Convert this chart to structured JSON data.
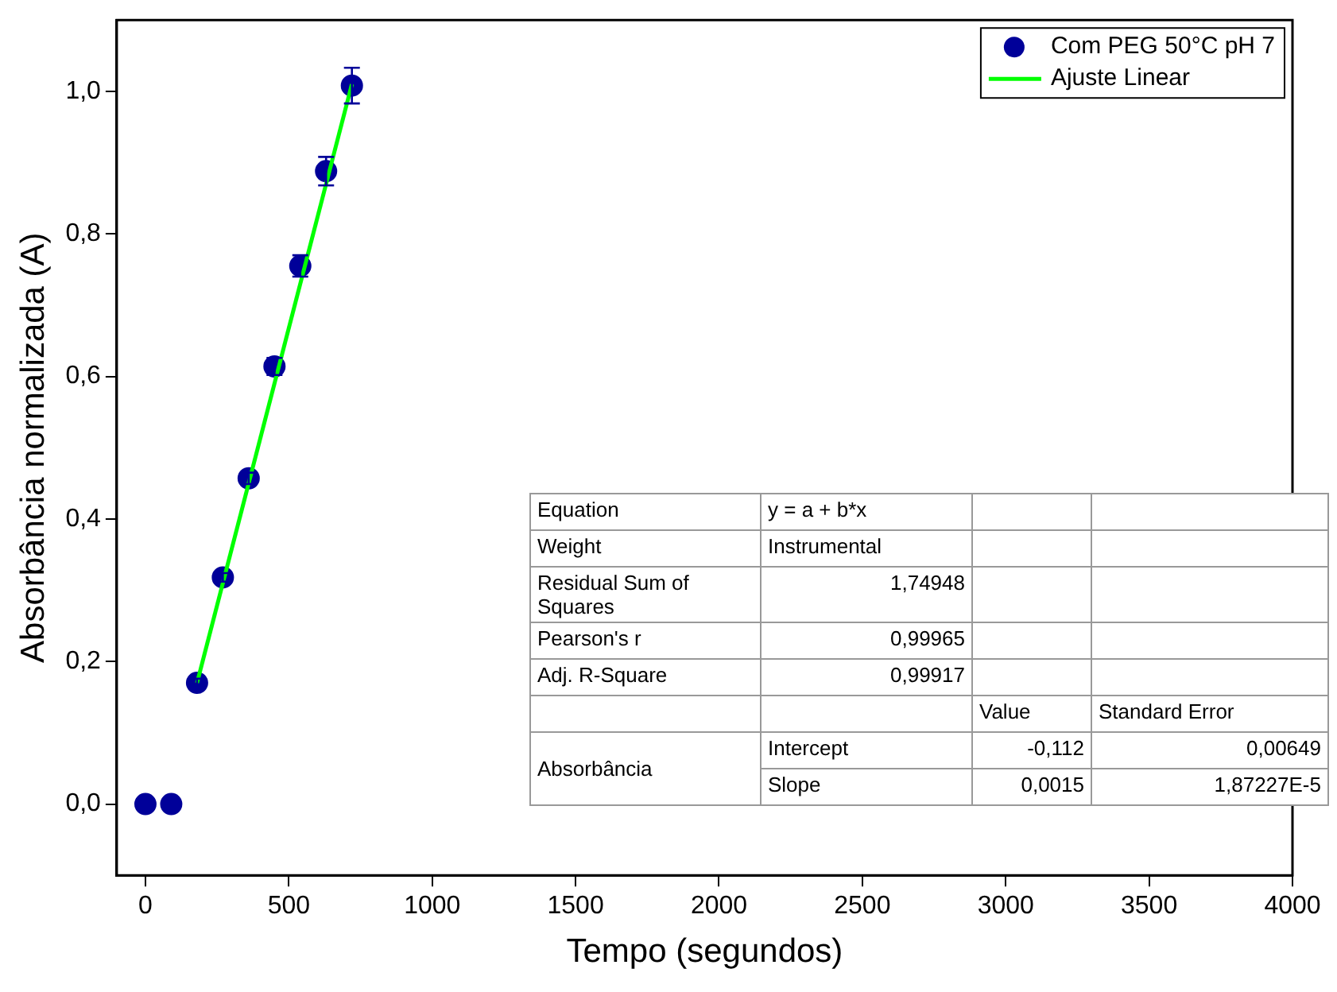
{
  "chart_data": {
    "type": "scatter",
    "xlabel": "Tempo (segundos)",
    "ylabel": "Absorbância normalizada (A)",
    "xlim": [
      -100,
      4000
    ],
    "xticks": [
      0,
      500,
      1000,
      1500,
      2000,
      2500,
      3000,
      3500,
      4000
    ],
    "ylim": [
      -0.1,
      1.1
    ],
    "yticks": [
      {
        "value": 0,
        "label": "0,0"
      },
      {
        "value": 0.2,
        "label": "0,2"
      },
      {
        "value": 0.4,
        "label": "0,4"
      },
      {
        "value": 0.6,
        "label": "0,6"
      },
      {
        "value": 0.8,
        "label": "0,8"
      },
      {
        "value": 1,
        "label": "1,0"
      }
    ],
    "series": [
      {
        "name": "Com PEG 50°C pH 7",
        "color": "#000099",
        "marker": "circle",
        "x": [
          0,
          90,
          180,
          270,
          360,
          450,
          540,
          630,
          720
        ],
        "values": [
          0,
          0,
          0.17,
          0.318,
          0.457,
          0.614,
          0.755,
          0.888,
          1.008
        ],
        "errors": [
          null,
          null,
          0.006,
          0.006,
          0.008,
          0.012,
          0.015,
          0.02,
          0.025
        ]
      },
      {
        "name": "Ajuste Linear",
        "type": "line",
        "color": "#00ff00",
        "marker": "none",
        "line_style": "solid",
        "x": [
          180,
          720
        ],
        "values": [
          0.17,
          1.01
        ]
      }
    ],
    "legend": "top right",
    "grid": false,
    "annotations": [
      "Equation",
      "y = a + b*x",
      "Weight",
      "Instrumental",
      "Residual Sum of Squares",
      "1,74948",
      "Pearson's r",
      "0,99965",
      "Adj. R-Square",
      "0,99917",
      "Value",
      "Standard Error",
      "Absorbância",
      "Intercept",
      "-0,112",
      "0,00649",
      "Slope",
      "0,0015",
      "1,87227E-5"
    ]
  }
}
